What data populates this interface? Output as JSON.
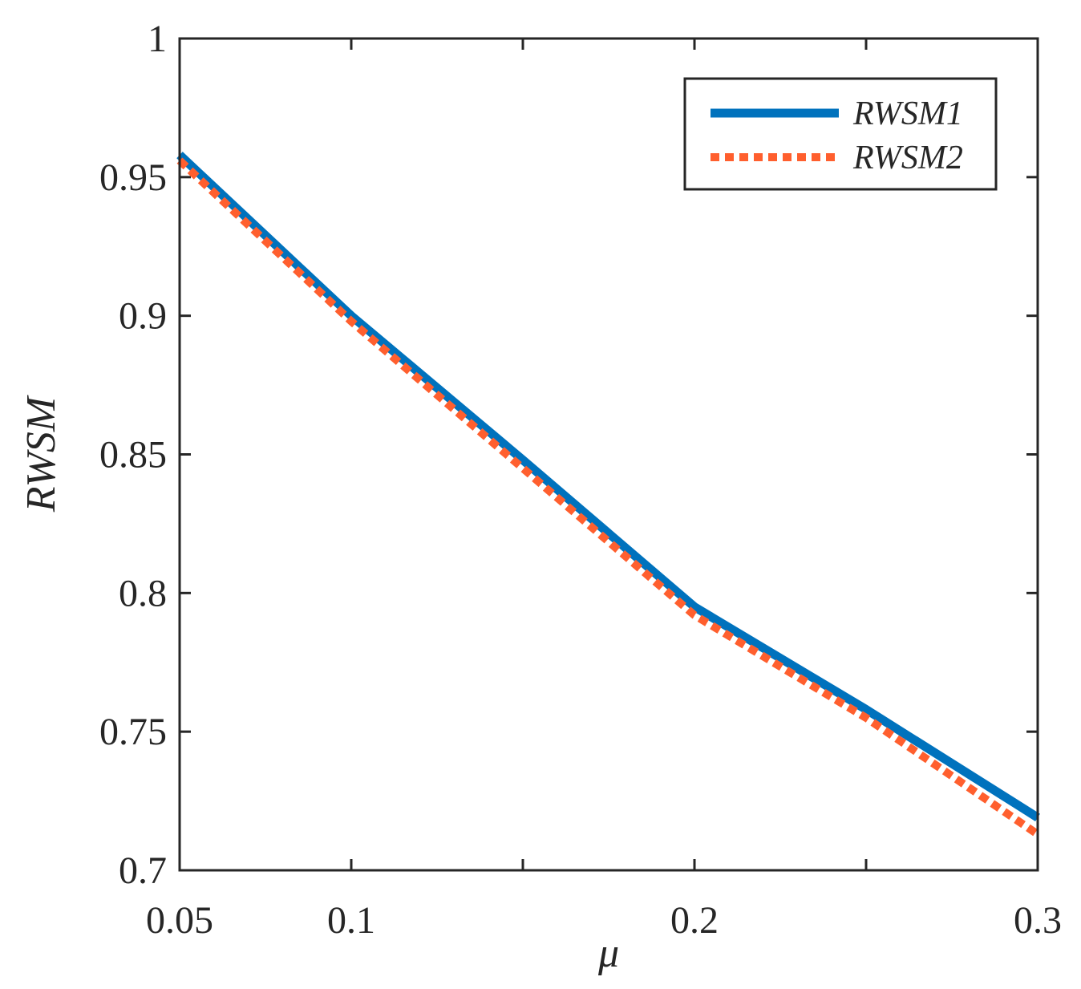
{
  "chart_data": {
    "type": "line",
    "title": "",
    "xlabel": "μ",
    "ylabel": "RWSM",
    "xlim": [
      0.05,
      0.3
    ],
    "ylim": [
      0.7,
      1.0
    ],
    "x_ticks": [
      0.05,
      0.1,
      0.2,
      0.3
    ],
    "x_tick_labels": [
      "0.05",
      "0.1",
      "0.2",
      "0.3"
    ],
    "x_minor_ticks": [
      0.15,
      0.25
    ],
    "y_ticks": [
      0.7,
      0.75,
      0.8,
      0.85,
      0.9,
      0.95,
      1.0
    ],
    "y_tick_labels": [
      "0.7",
      "0.75",
      "0.8",
      "0.85",
      "0.9",
      "0.95",
      "1"
    ],
    "grid": false,
    "legend_position": "top-right",
    "series": [
      {
        "name": "RWSM1",
        "color": "#0072BD",
        "style": "solid",
        "x": [
          0.05,
          0.1,
          0.15,
          0.2,
          0.25,
          0.3
        ],
        "y": [
          0.958,
          0.9,
          0.848,
          0.795,
          0.758,
          0.719
        ]
      },
      {
        "name": "RWSM2",
        "color": "#FF5F2E",
        "style": "dotted",
        "x": [
          0.05,
          0.1,
          0.15,
          0.2,
          0.25,
          0.3
        ],
        "y": [
          0.956,
          0.898,
          0.845,
          0.792,
          0.755,
          0.713
        ]
      }
    ]
  }
}
